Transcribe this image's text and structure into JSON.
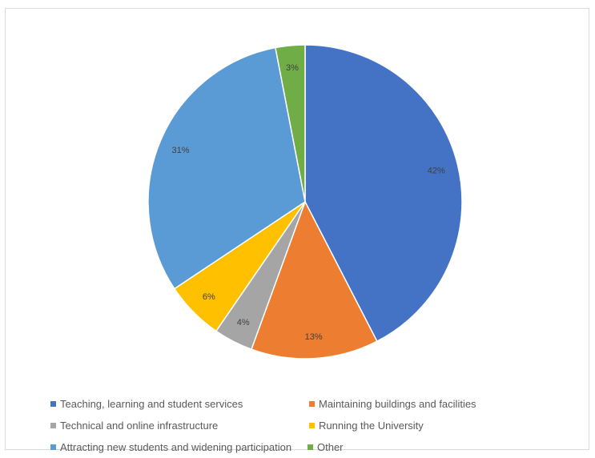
{
  "chart_data": {
    "type": "pie",
    "title": "",
    "categories": [
      "Teaching, learning and student services",
      "Maintaining buildings and facilities",
      "Technical and online infrastructure",
      "Running the University",
      "Attracting new students and widening participation",
      "Other"
    ],
    "values": [
      42,
      13,
      4,
      6,
      31,
      3
    ],
    "data_labels": [
      "42%",
      "13%",
      "4%",
      "6%",
      "31%",
      "3%"
    ],
    "colors": [
      "#4472c4",
      "#ed7d31",
      "#a5a5a5",
      "#ffc000",
      "#5b9bd5",
      "#70ad47"
    ],
    "legend_placement": "bottom",
    "start_angle": "12 o'clock, clockwise"
  }
}
